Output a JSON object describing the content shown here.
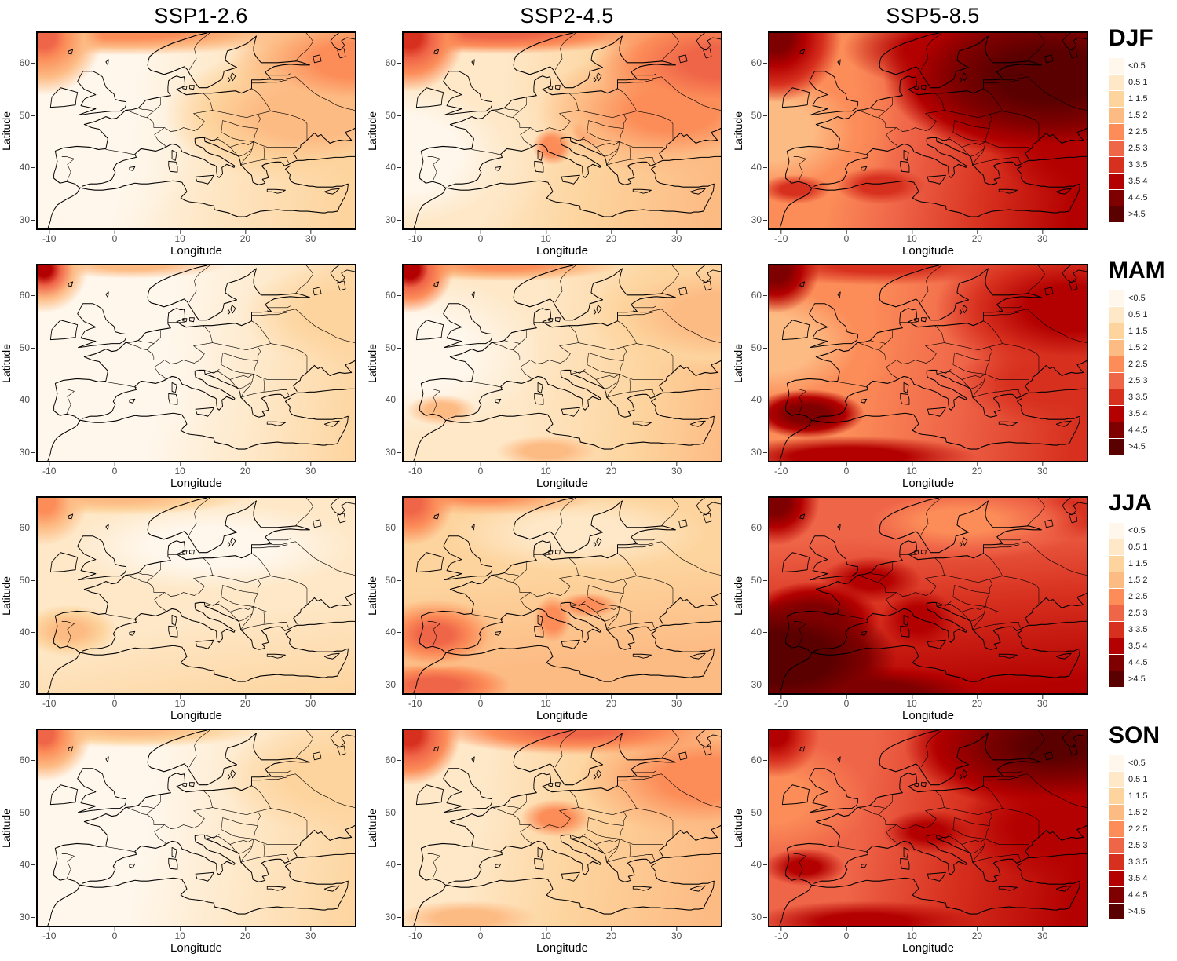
{
  "figure": {
    "columns": [
      {
        "label": "SSP1-2.6"
      },
      {
        "label": "SSP2-4.5"
      },
      {
        "label": "SSP5-8.5"
      }
    ],
    "rows": [
      {
        "label": "DJF"
      },
      {
        "label": "MAM"
      },
      {
        "label": "JJA"
      },
      {
        "label": "SON"
      }
    ],
    "axes": {
      "x_label": "Longitude",
      "y_label": "Latitude",
      "x_ticks": [
        "-10",
        "0",
        "10",
        "20",
        "30"
      ],
      "y_ticks": [
        "60",
        "50",
        "40",
        "30"
      ]
    },
    "legend": {
      "labels": [
        "<0.5",
        "0.5 1",
        "1 1.5",
        "1.5 2",
        "2 2.5",
        "2.5 3",
        "3 3.5",
        "3.5 4",
        "4 4.5",
        ">4.5"
      ],
      "colors": [
        "#FFF7EC",
        "#FEE8C8",
        "#FDD49E",
        "#FDBB84",
        "#FC8D59",
        "#EF6548",
        "#D7301F",
        "#B30000",
        "#7F0000",
        "#5A0000"
      ]
    }
  },
  "chart_data": {
    "type": "heatmap",
    "facet_columns": [
      "SSP1-2.6",
      "SSP2-4.5",
      "SSP5-8.5"
    ],
    "facet_rows": [
      "DJF",
      "MAM",
      "JJA",
      "SON"
    ],
    "x": {
      "label": "Longitude",
      "ticks": [
        -10,
        0,
        10,
        20,
        30
      ],
      "range": [
        -12,
        37
      ]
    },
    "y": {
      "label": "Latitude",
      "ticks": [
        30,
        40,
        50,
        60
      ],
      "range": [
        28,
        66
      ]
    },
    "grid": false,
    "legend": {
      "position": "right",
      "bin_labels": [
        "<0.5",
        "0.5 1",
        "1 1.5",
        "1.5 2",
        "2 2.5",
        "2.5 3",
        "3 3.5",
        "3.5 4",
        "4 4.5",
        ">4.5"
      ],
      "bin_breaks": [
        0.5,
        1,
        1.5,
        2,
        2.5,
        3,
        3.5,
        4,
        4.5
      ],
      "colors": [
        "#FFF7EC",
        "#FEE8C8",
        "#FDD49E",
        "#FDBB84",
        "#FC8D59",
        "#EF6548",
        "#D7301F",
        "#B30000",
        "#7F0000",
        "#5A0000"
      ]
    },
    "panels": [
      {
        "season": "DJF",
        "scenario": "SSP1-2.6",
        "approx_values": {
          "west_europe": 0.7,
          "iberia": 0.7,
          "central_europe": 1.2,
          "east_europe": 2.2,
          "scandinavia": 1.7,
          "north_africa": 0.7,
          "nw_corner_hotspot": 3.2
        }
      },
      {
        "season": "DJF",
        "scenario": "SSP2-4.5",
        "approx_values": {
          "west_europe": 1.2,
          "iberia": 1.2,
          "central_europe": 1.7,
          "east_europe": 2.7,
          "scandinavia": 2.2,
          "north_africa": 1.2,
          "nw_corner_hotspot": 3.7
        }
      },
      {
        "season": "DJF",
        "scenario": "SSP5-8.5",
        "approx_values": {
          "west_europe": 2.2,
          "iberia": 2.7,
          "central_europe": 3.7,
          "east_europe": 4.7,
          "scandinavia": 3.7,
          "north_africa": 3.2,
          "nw_corner_hotspot": 4.7
        }
      },
      {
        "season": "MAM",
        "scenario": "SSP1-2.6",
        "approx_values": {
          "west_europe": 0.7,
          "iberia": 0.7,
          "central_europe": 1.2,
          "east_europe": 1.7,
          "scandinavia": 1.2,
          "north_africa": 1.2,
          "nw_corner_hotspot": 4.2
        }
      },
      {
        "season": "MAM",
        "scenario": "SSP2-4.5",
        "approx_values": {
          "west_europe": 1.2,
          "iberia": 1.7,
          "central_europe": 1.7,
          "east_europe": 2.2,
          "scandinavia": 1.7,
          "north_africa": 1.7,
          "nw_corner_hotspot": 4.2
        }
      },
      {
        "season": "MAM",
        "scenario": "SSP5-8.5",
        "approx_values": {
          "west_europe": 2.2,
          "iberia": 3.7,
          "central_europe": 2.7,
          "east_europe": 3.2,
          "scandinavia": 2.7,
          "north_africa": 4.2,
          "nw_corner_hotspot": 4.7
        }
      },
      {
        "season": "JJA",
        "scenario": "SSP1-2.6",
        "approx_values": {
          "west_europe": 1.2,
          "iberia": 1.7,
          "central_europe": 1.2,
          "east_europe": 1.2,
          "scandinavia": 0.7,
          "north_africa": 1.2,
          "nw_corner_hotspot": 2.7
        }
      },
      {
        "season": "JJA",
        "scenario": "SSP2-4.5",
        "approx_values": {
          "west_europe": 1.7,
          "iberia": 2.7,
          "central_europe": 1.7,
          "east_europe": 1.7,
          "scandinavia": 1.2,
          "north_africa": 2.7,
          "nw_corner_hotspot": 3.2
        }
      },
      {
        "season": "JJA",
        "scenario": "SSP5-8.5",
        "approx_values": {
          "west_europe": 3.7,
          "iberia": 4.7,
          "central_europe": 3.7,
          "east_europe": 3.2,
          "scandinavia": 2.2,
          "north_africa": 4.7,
          "nw_corner_hotspot": 4.7
        }
      },
      {
        "season": "SON",
        "scenario": "SSP1-2.6",
        "approx_values": {
          "west_europe": 0.7,
          "iberia": 1.2,
          "central_europe": 1.2,
          "east_europe": 1.7,
          "scandinavia": 1.7,
          "north_africa": 1.2,
          "nw_corner_hotspot": 2.7
        }
      },
      {
        "season": "SON",
        "scenario": "SSP2-4.5",
        "approx_values": {
          "west_europe": 1.7,
          "iberia": 1.7,
          "central_europe": 2.2,
          "east_europe": 2.7,
          "scandinavia": 2.2,
          "north_africa": 1.7,
          "nw_corner_hotspot": 3.7
        }
      },
      {
        "season": "SON",
        "scenario": "SSP5-8.5",
        "approx_values": {
          "west_europe": 2.7,
          "iberia": 3.7,
          "central_europe": 3.7,
          "east_europe": 4.2,
          "scandinavia": 3.7,
          "north_africa": 3.7,
          "nw_corner_hotspot": 4.2
        }
      }
    ]
  }
}
